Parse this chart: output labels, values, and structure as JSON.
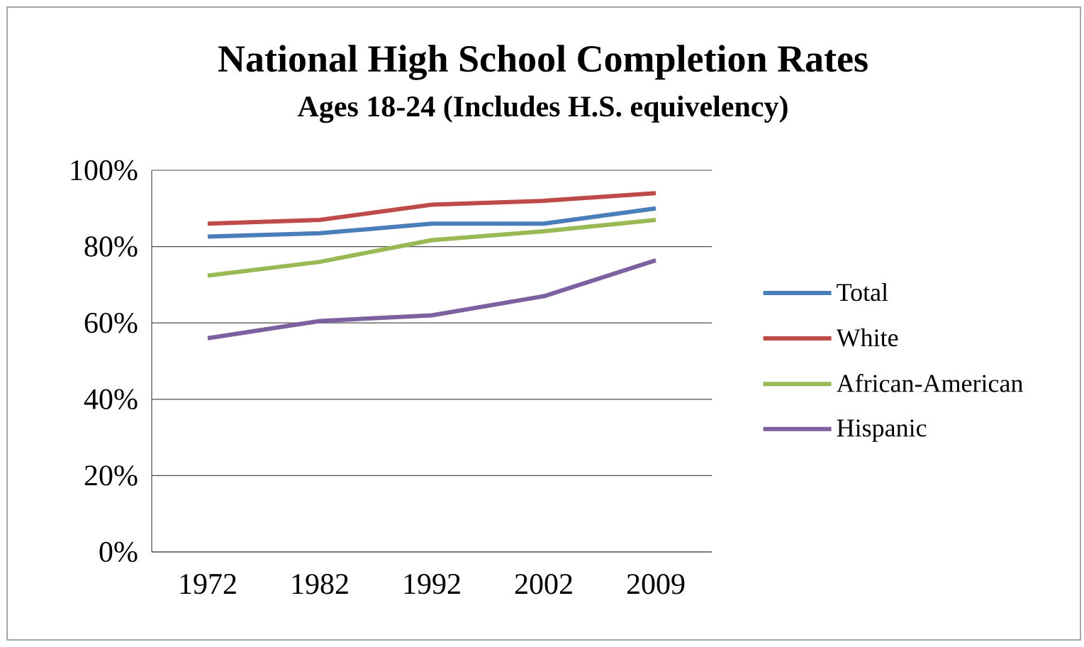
{
  "chart_data": {
    "type": "line",
    "title": "National High School Completion Rates",
    "subtitle": "Ages 18-24 (Includes H.S. equivelency)",
    "categories": [
      "1972",
      "1982",
      "1992",
      "2002",
      "2009"
    ],
    "series": [
      {
        "name": "Total",
        "color": "#4a7ebb",
        "values": [
          82.6,
          83.5,
          86,
          86,
          90
        ]
      },
      {
        "name": "White",
        "color": "#be4b48",
        "values": [
          86,
          87,
          91,
          92,
          94
        ]
      },
      {
        "name": "African-American",
        "color": "#98b954",
        "values": [
          72.4,
          76,
          81.7,
          84,
          87
        ]
      },
      {
        "name": "Hispanic",
        "color": "#7d60a0",
        "values": [
          56,
          60.5,
          62,
          67,
          76.4
        ]
      }
    ],
    "ylim": [
      0,
      100
    ],
    "yticks": [
      {
        "value": 0,
        "label": "0%"
      },
      {
        "value": 20,
        "label": "20%"
      },
      {
        "value": 40,
        "label": "40%"
      },
      {
        "value": 60,
        "label": "60%"
      },
      {
        "value": 80,
        "label": "80%"
      },
      {
        "value": 100,
        "label": "100%"
      }
    ],
    "grid": "y",
    "legend": "right",
    "marker": "none",
    "line_style": "solid"
  }
}
